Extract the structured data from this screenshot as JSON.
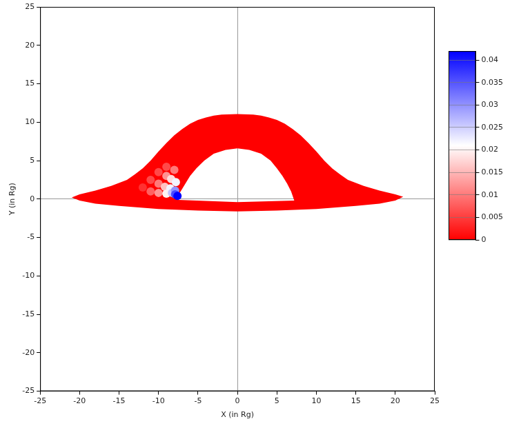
{
  "chart_data": {
    "type": "heatmap",
    "x_label": "X (in Rg)",
    "y_label": "Y (in Rg)",
    "xlim": [
      -25,
      25
    ],
    "xticks": [
      -25,
      -20,
      -15,
      -10,
      -5,
      0,
      5,
      10,
      15,
      20,
      25
    ],
    "ylim": [
      -25,
      25
    ],
    "yticks": [
      -25,
      -20,
      -15,
      -10,
      -5,
      0,
      5,
      10,
      15,
      20,
      25
    ],
    "grid": false,
    "disk": {
      "value": 0,
      "outer": [
        [
          -21,
          0.2
        ],
        [
          -20,
          0.6
        ],
        [
          -18,
          1.1
        ],
        [
          -16,
          1.7
        ],
        [
          -14,
          2.5
        ],
        [
          -13,
          3.2
        ],
        [
          -12,
          4
        ],
        [
          -11,
          5
        ],
        [
          -10,
          6.2
        ],
        [
          -9,
          7.3
        ],
        [
          -8,
          8.3
        ],
        [
          -7,
          9.1
        ],
        [
          -6,
          9.8
        ],
        [
          -5,
          10.3
        ],
        [
          -4,
          10.6
        ],
        [
          -3,
          10.85
        ],
        [
          -2,
          11
        ],
        [
          0,
          11.05
        ],
        [
          2,
          11
        ],
        [
          3,
          10.85
        ],
        [
          4,
          10.6
        ],
        [
          5,
          10.3
        ],
        [
          6,
          9.8
        ],
        [
          7,
          9.1
        ],
        [
          8,
          8.3
        ],
        [
          9,
          7.3
        ],
        [
          10,
          6.2
        ],
        [
          11,
          5
        ],
        [
          12,
          4
        ],
        [
          13,
          3.2
        ],
        [
          14,
          2.5
        ],
        [
          16,
          1.7
        ],
        [
          18,
          1.1
        ],
        [
          20,
          0.6
        ],
        [
          21,
          0.3
        ],
        [
          20,
          -0.2
        ],
        [
          18,
          -0.6
        ],
        [
          15,
          -0.9
        ],
        [
          10,
          -1.3
        ],
        [
          5,
          -1.5
        ],
        [
          0,
          -1.6
        ],
        [
          -5,
          -1.5
        ],
        [
          -10,
          -1.3
        ],
        [
          -15,
          -0.9
        ],
        [
          -18,
          -0.6
        ],
        [
          -20,
          -0.2
        ]
      ],
      "inner": [
        [
          -7.8,
          0.1
        ],
        [
          -7.2,
          1
        ],
        [
          -6.6,
          2
        ],
        [
          -6,
          3
        ],
        [
          -5.2,
          4
        ],
        [
          -4.2,
          5
        ],
        [
          -3,
          5.9
        ],
        [
          -1.5,
          6.4
        ],
        [
          0,
          6.6
        ],
        [
          1.5,
          6.4
        ],
        [
          3,
          5.9
        ],
        [
          4.2,
          5
        ],
        [
          5,
          4
        ],
        [
          5.7,
          3
        ],
        [
          6.3,
          2
        ],
        [
          6.8,
          1
        ],
        [
          7.2,
          -0.2
        ],
        [
          0,
          -0.4
        ],
        [
          -7.5,
          -0.1
        ]
      ]
    },
    "cells": [
      [
        -12,
        1.5,
        0.004
      ],
      [
        -11,
        2.5,
        0.006
      ],
      [
        -10,
        3.5,
        0.006
      ],
      [
        -9,
        4.2,
        0.006
      ],
      [
        -11,
        1,
        0.008
      ],
      [
        -10,
        2,
        0.01
      ],
      [
        -9,
        3,
        0.012
      ],
      [
        -8,
        3.8,
        0.01
      ],
      [
        -10,
        0.8,
        0.012
      ],
      [
        -9.2,
        1.6,
        0.016
      ],
      [
        -8.4,
        2.6,
        0.018
      ],
      [
        -9,
        0.7,
        0.02
      ],
      [
        -8.5,
        1.4,
        0.022
      ],
      [
        -7.8,
        2.2,
        0.022
      ],
      [
        -8.3,
        0.8,
        0.026
      ],
      [
        -7.9,
        1.1,
        0.03
      ],
      [
        -7.9,
        0.6,
        0.036
      ],
      [
        -7.6,
        0.4,
        0.042
      ]
    ],
    "colorbar": {
      "range": [
        0,
        0.042
      ],
      "ticks": [
        0,
        0.005,
        0.01,
        0.015,
        0.02,
        0.025,
        0.03,
        0.035,
        0.04
      ],
      "colors": [
        "#ff0000",
        "#ffffff",
        "#0000ff"
      ]
    }
  }
}
